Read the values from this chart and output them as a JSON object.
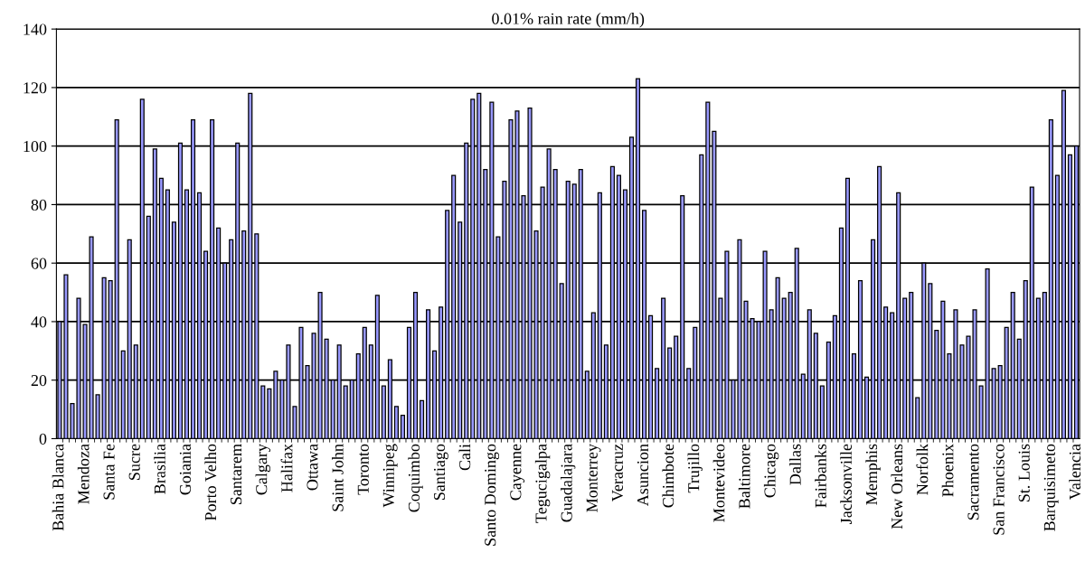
{
  "chart_data": {
    "type": "bar",
    "title": "0.01% rain rate (mm/h)",
    "categories": [
      "Bahia Blanca",
      null,
      null,
      null,
      "Mendoza",
      null,
      null,
      null,
      "Santa Fe",
      null,
      null,
      null,
      "Sucre",
      null,
      null,
      null,
      "Brasilia",
      null,
      null,
      null,
      "Goiania",
      null,
      null,
      null,
      "Porto Velho",
      null,
      null,
      null,
      "Santarem",
      null,
      null,
      null,
      "Calgary",
      null,
      null,
      null,
      "Halifax",
      null,
      null,
      null,
      "Ottawa",
      null,
      null,
      null,
      "Saint John",
      null,
      null,
      null,
      "Toronto",
      null,
      null,
      null,
      "Winnipeg",
      null,
      null,
      null,
      "Coquimbo",
      null,
      null,
      null,
      "Santiago",
      null,
      null,
      null,
      "Cali",
      null,
      null,
      null,
      "Santo Domingo",
      null,
      null,
      null,
      "Cayenne",
      null,
      null,
      null,
      "Tegucigalpa",
      null,
      null,
      null,
      "Guadalajara",
      null,
      null,
      null,
      "Monterrey",
      null,
      null,
      null,
      "Veracruz",
      null,
      null,
      null,
      "Asuncion",
      null,
      null,
      null,
      "Chimbote",
      null,
      null,
      null,
      "Trujillo",
      null,
      null,
      null,
      "Montevideo",
      null,
      null,
      null,
      "Baltimore",
      null,
      null,
      null,
      "Chicago",
      null,
      null,
      null,
      "Dallas",
      null,
      null,
      null,
      "Fairbanks",
      null,
      null,
      null,
      "Jacksonville",
      null,
      null,
      null,
      "Memphis",
      null,
      null,
      null,
      "New Orleans",
      null,
      null,
      null,
      "Norfolk",
      null,
      null,
      null,
      "Phoenix",
      null,
      null,
      null,
      "Sacramento",
      null,
      null,
      null,
      "San Francisco",
      null,
      null,
      null,
      "St. Louis",
      null,
      null,
      null,
      "Barquisimeto",
      null,
      null,
      null,
      "Valencia"
    ],
    "values": [
      40,
      56,
      12,
      48,
      39,
      69,
      15,
      55,
      54,
      109,
      30,
      68,
      32,
      116,
      76,
      99,
      89,
      85,
      74,
      101,
      85,
      109,
      84,
      64,
      109,
      72,
      60,
      68,
      101,
      71,
      118,
      70,
      18,
      17,
      23,
      20,
      32,
      11,
      38,
      25,
      36,
      50,
      34,
      20,
      32,
      18,
      20,
      29,
      38,
      32,
      49,
      18,
      27,
      11,
      8,
      38,
      50,
      13,
      44,
      30,
      45,
      78,
      90,
      74,
      101,
      116,
      118,
      92,
      115,
      69,
      88,
      109,
      112,
      83,
      113,
      71,
      86,
      99,
      92,
      53,
      88,
      87,
      92,
      23,
      43,
      84,
      32,
      93,
      90,
      85,
      103,
      123,
      78,
      42,
      24,
      48,
      31,
      35,
      83,
      24,
      38,
      97,
      115,
      105,
      48,
      64,
      20,
      68,
      47,
      41,
      40,
      64,
      44,
      55,
      48,
      50,
      65,
      22,
      44,
      36,
      18,
      33,
      42,
      72,
      89,
      29,
      54,
      21,
      68,
      93,
      45,
      43,
      84,
      48,
      50,
      14,
      60,
      53,
      37,
      47,
      29,
      44,
      32,
      35,
      44,
      18,
      58,
      24,
      25,
      38,
      50,
      34,
      54,
      86,
      48,
      50,
      109,
      90,
      119,
      97,
      100
    ],
    "color": "#9999ff",
    "ylim": [
      0,
      140
    ],
    "yticks": [
      0,
      20,
      40,
      60,
      80,
      100,
      120,
      140
    ],
    "grid": "y",
    "legend": false
  }
}
